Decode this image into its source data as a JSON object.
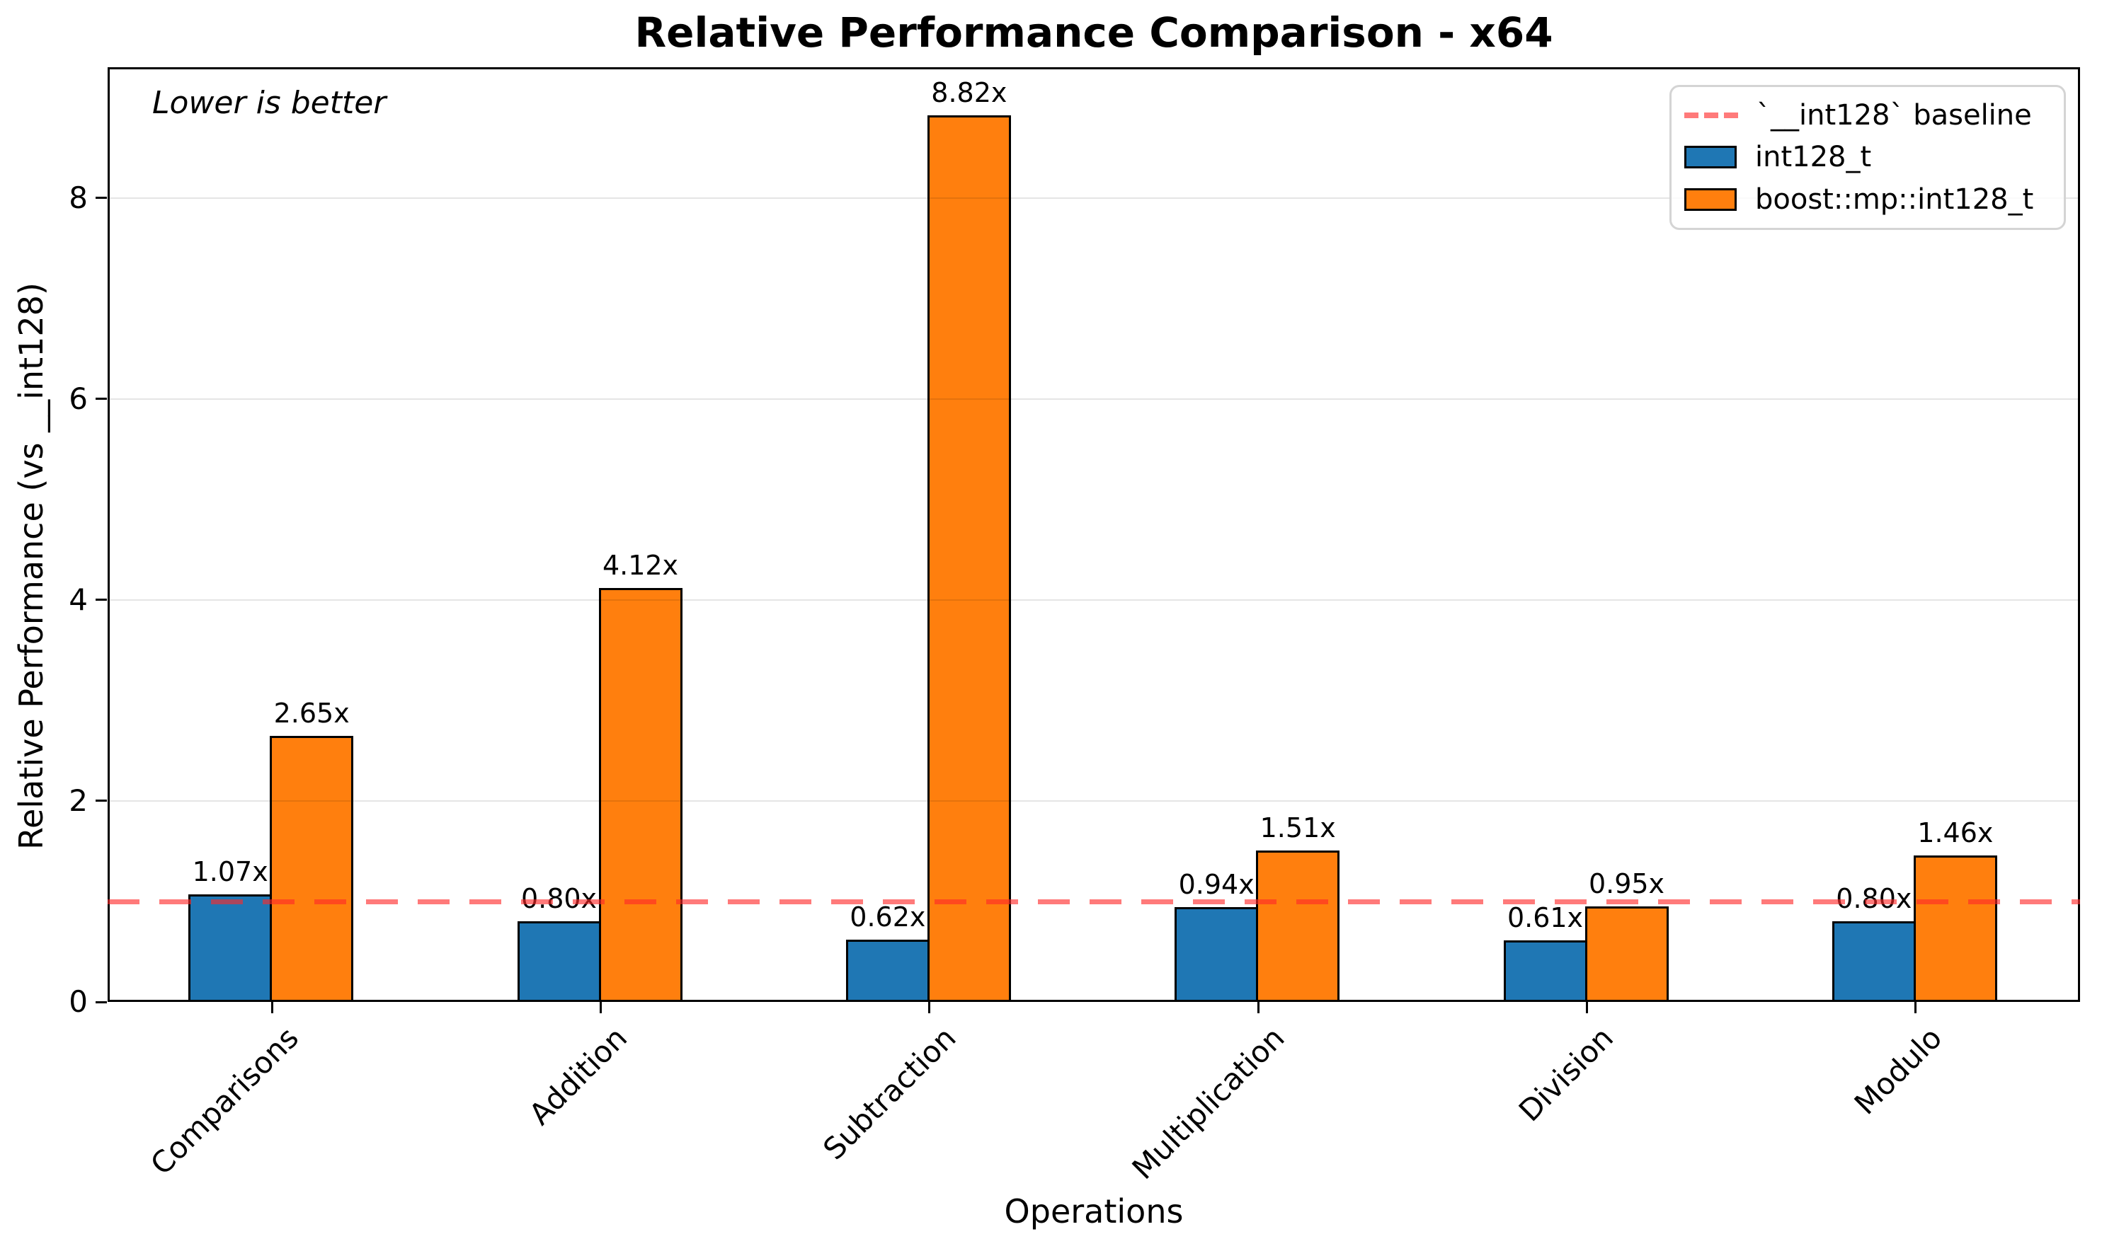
{
  "title": "Relative Performance Comparison - x64",
  "annotation": "Lower is better",
  "legend": {
    "items": [
      {
        "type": "dash",
        "label": "`__int128` baseline",
        "color": "rgba(255,40,40,0.62)"
      },
      {
        "type": "rect",
        "label": "int128_t",
        "color": "#1f77b4"
      },
      {
        "type": "rect",
        "label": "boost::mp::int128_t",
        "color": "#ff7f0e"
      }
    ]
  },
  "chart_data": {
    "type": "bar",
    "title": "Relative Performance Comparison - x64",
    "xlabel": "Operations",
    "ylabel": "Relative Performance (vs __int128)",
    "categories": [
      "Comparisons",
      "Addition",
      "Subtraction",
      "Multiplication",
      "Division",
      "Modulo"
    ],
    "series": [
      {
        "name": "int128_t",
        "color": "#1f77b4",
        "values": [
          1.07,
          0.8,
          0.62,
          0.94,
          0.61,
          0.8
        ],
        "labels": [
          "1.07x",
          "0.80x",
          "0.62x",
          "0.94x",
          "0.61x",
          "0.80x"
        ]
      },
      {
        "name": "boost::mp::int128_t",
        "color": "#ff7f0e",
        "values": [
          2.65,
          4.12,
          8.82,
          1.51,
          0.95,
          1.46
        ],
        "labels": [
          "2.65x",
          "4.12x",
          "8.82x",
          "1.51x",
          "0.95x",
          "1.46x"
        ]
      }
    ],
    "baseline": {
      "value": 1.0,
      "label": "`__int128` baseline",
      "color": "rgba(255,40,40,0.62)"
    },
    "ylim": [
      0,
      9.3
    ],
    "yticks": [
      0,
      2,
      4,
      6,
      8
    ],
    "grid": "horizontal",
    "legend_position": "upper right",
    "annotation": "Lower is better"
  }
}
